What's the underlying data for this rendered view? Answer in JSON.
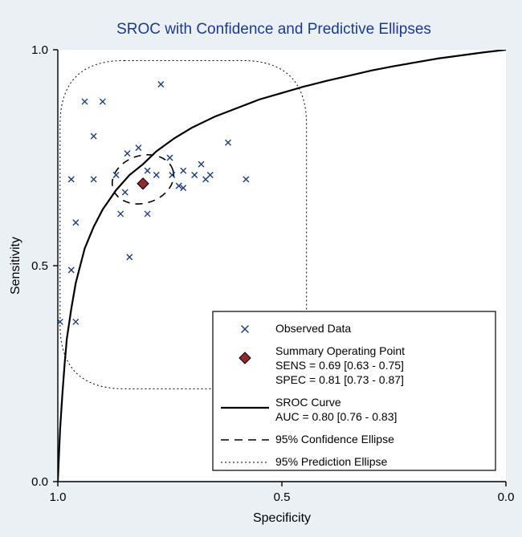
{
  "chart": {
    "type": "sroc-scatter",
    "title": "SROC with Confidence and Predictive Ellipses",
    "xlabel": "Specificity",
    "ylabel": "Sensitivity",
    "background_outer": "#eaf0f3",
    "background_plot": "#ffffff",
    "axis_color": "#000000",
    "xdomain_display": [
      1.0,
      0.0
    ],
    "ydomain": [
      0.0,
      1.0
    ],
    "xticks": [
      1.0,
      0.5,
      0.0
    ],
    "yticks": [
      0.0,
      0.5,
      1.0
    ],
    "tick_fontsize": 15,
    "label_fontsize": 16,
    "title_fontsize": 19,
    "title_color": "#1b3b8a",
    "marker_color": "#1c3d7c",
    "marker_style": "x",
    "marker_size": 7,
    "summary_point": {
      "spec": 0.81,
      "sens": 0.69,
      "fill": "#8f2a2f",
      "stroke": "#000000",
      "size": 14
    },
    "confidence_ellipse": {
      "cx_spec": 0.81,
      "cy_sens": 0.7,
      "rx": 0.07,
      "ry": 0.055,
      "angle_deg": -18,
      "stroke": "#000000",
      "dash": "9,7",
      "width": 1.6
    },
    "prediction_ellipse": {
      "cx_spec": 0.72,
      "cy_sens": 0.595,
      "rx": 0.275,
      "ry": 0.38,
      "angle_deg": 0,
      "corner_radius_factor": 0.52,
      "stroke": "#000000",
      "dash": "2,3",
      "width": 1
    },
    "sroc_curve": {
      "stroke": "#000000",
      "width": 2.2,
      "points": [
        [
          1.0,
          0.0
        ],
        [
          0.995,
          0.12
        ],
        [
          0.99,
          0.2
        ],
        [
          0.985,
          0.27
        ],
        [
          0.98,
          0.33
        ],
        [
          0.97,
          0.4
        ],
        [
          0.96,
          0.46
        ],
        [
          0.95,
          0.5
        ],
        [
          0.94,
          0.54
        ],
        [
          0.92,
          0.59
        ],
        [
          0.9,
          0.63
        ],
        [
          0.87,
          0.675
        ],
        [
          0.84,
          0.71
        ],
        [
          0.81,
          0.735
        ],
        [
          0.78,
          0.765
        ],
        [
          0.74,
          0.795
        ],
        [
          0.7,
          0.82
        ],
        [
          0.65,
          0.845
        ],
        [
          0.6,
          0.865
        ],
        [
          0.55,
          0.885
        ],
        [
          0.5,
          0.9
        ],
        [
          0.45,
          0.915
        ],
        [
          0.4,
          0.928
        ],
        [
          0.35,
          0.94
        ],
        [
          0.3,
          0.952
        ],
        [
          0.25,
          0.962
        ],
        [
          0.2,
          0.971
        ],
        [
          0.15,
          0.98
        ],
        [
          0.1,
          0.987
        ],
        [
          0.05,
          0.994
        ],
        [
          0.0,
          1.0
        ]
      ]
    },
    "observed": [
      [
        0.995,
        0.37
      ],
      [
        0.97,
        0.49
      ],
      [
        0.97,
        0.7
      ],
      [
        0.96,
        0.6
      ],
      [
        0.96,
        0.37
      ],
      [
        0.94,
        0.88
      ],
      [
        0.92,
        0.8
      ],
      [
        0.92,
        0.7
      ],
      [
        0.9,
        0.88
      ],
      [
        0.87,
        0.71
      ],
      [
        0.86,
        0.62
      ],
      [
        0.85,
        0.67
      ],
      [
        0.845,
        0.76
      ],
      [
        0.84,
        0.52
      ],
      [
        0.82,
        0.773
      ],
      [
        0.8,
        0.72
      ],
      [
        0.8,
        0.62
      ],
      [
        0.78,
        0.71
      ],
      [
        0.77,
        0.92
      ],
      [
        0.75,
        0.75
      ],
      [
        0.745,
        0.71
      ],
      [
        0.73,
        0.685
      ],
      [
        0.72,
        0.72
      ],
      [
        0.72,
        0.68
      ],
      [
        0.695,
        0.71
      ],
      [
        0.68,
        0.735
      ],
      [
        0.67,
        0.7
      ],
      [
        0.66,
        0.71
      ],
      [
        0.62,
        0.785
      ],
      [
        0.58,
        0.7
      ]
    ],
    "legend": {
      "box_stroke": "#000000",
      "box_fill": "#ffffff",
      "items": {
        "observed": "Observed Data",
        "summary1": "Summary Operating Point",
        "summary2": "SENS = 0.69 [0.63 - 0.75]",
        "summary3": "SPEC = 0.81 [0.73 - 0.87]",
        "sroc1": "SROC Curve",
        "sroc2": "AUC = 0.80 [0.76 - 0.83]",
        "conf": "95% Confidence Ellipse",
        "pred": "95% Prediction Ellipse"
      }
    }
  }
}
